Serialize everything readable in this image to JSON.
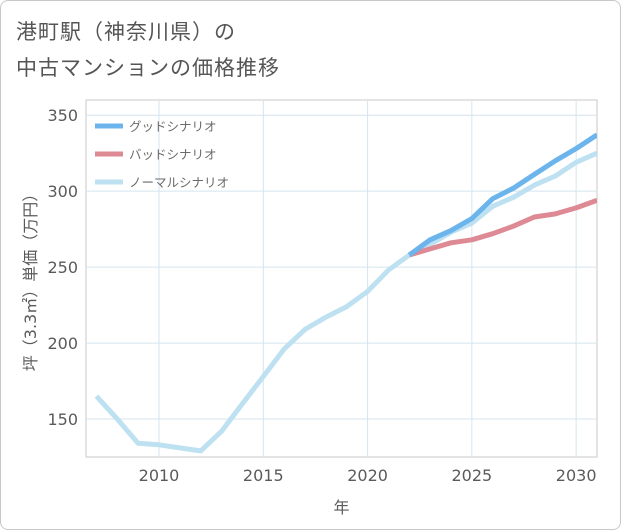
{
  "title": {
    "line1": "港町駅（神奈川県）の",
    "line2": "中古マンションの価格推移"
  },
  "chart_data": {
    "type": "line",
    "xlabel": "年",
    "ylabel": "坪（3.3㎡）単価（万円）",
    "xlim": [
      2006.5,
      2031
    ],
    "ylim": [
      125,
      360
    ],
    "xticks": [
      2010,
      2015,
      2020,
      2025,
      2030
    ],
    "yticks": [
      150,
      200,
      250,
      300,
      350
    ],
    "xtick_labels": [
      "2010",
      "2015",
      "2020",
      "2025",
      "2030"
    ],
    "ytick_labels": [
      "150",
      "200",
      "250",
      "300",
      "350"
    ],
    "grid": true,
    "legend_position": "top-left",
    "series": [
      {
        "name": "グッドシナリオ",
        "color": "#6cb4ec",
        "x": [
          2022,
          2023,
          2024,
          2025,
          2026,
          2027,
          2028,
          2029,
          2030,
          2031
        ],
        "y": [
          258,
          268,
          274,
          282,
          295,
          302,
          311,
          320,
          328,
          337
        ]
      },
      {
        "name": "バッドシナリオ",
        "color": "#de8a94",
        "x": [
          2022,
          2023,
          2024,
          2025,
          2026,
          2027,
          2028,
          2029,
          2030,
          2031
        ],
        "y": [
          258,
          262,
          266,
          268,
          272,
          277,
          283,
          285,
          289,
          294
        ]
      },
      {
        "name": "ノーマルシナリオ",
        "color": "#bee1f1",
        "x": [
          2007,
          2008,
          2009,
          2010,
          2011,
          2012,
          2013,
          2014,
          2015,
          2016,
          2017,
          2018,
          2019,
          2020,
          2021,
          2022,
          2023,
          2024,
          2025,
          2026,
          2027,
          2028,
          2029,
          2030,
          2031
        ],
        "y": [
          165,
          150,
          134,
          133,
          131,
          129,
          142,
          160,
          178,
          196,
          209,
          217,
          224,
          234,
          248,
          258,
          265,
          273,
          279,
          290,
          296,
          304,
          310,
          319,
          325
        ]
      }
    ]
  }
}
